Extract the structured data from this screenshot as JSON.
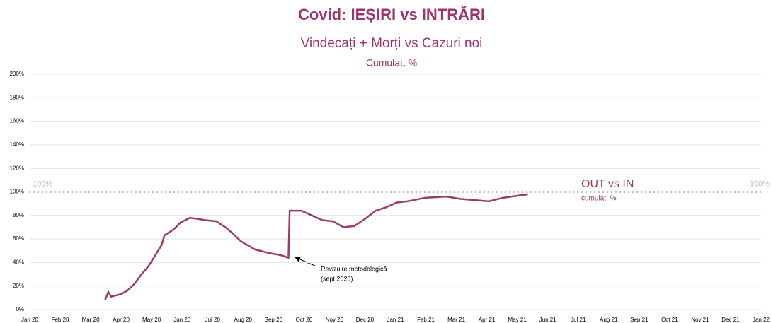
{
  "chart_data": {
    "type": "line",
    "title": "Covid: IEȘIRI vs INTRĂRI",
    "subtitle": "Vindecați + Morți vs Cazuri noi",
    "subtitle2": "Cumulat, %",
    "series": [
      {
        "name": "OUT vs IN",
        "color": "#9b3a6c",
        "x": [
          2.47,
          2.58,
          2.67,
          2.98,
          3.2,
          3.44,
          3.67,
          3.9,
          4.14,
          4.33,
          4.42,
          4.72,
          4.95,
          5.26,
          5.53,
          5.77,
          6.12,
          6.42,
          6.65,
          6.93,
          7.4,
          7.86,
          8.28,
          8.49,
          8.53,
          8.91,
          9.26,
          9.6,
          9.95,
          10.3,
          10.65,
          11.0,
          11.35,
          11.7,
          12.05,
          12.4,
          12.98,
          13.67,
          14.14,
          14.6,
          15.07,
          15.53,
          16.35
        ],
        "values": [
          8,
          15,
          11,
          13,
          16,
          22,
          30,
          37,
          47,
          55,
          63,
          68,
          74,
          78,
          77,
          76,
          75,
          70,
          65,
          58,
          51,
          48,
          46,
          44,
          84,
          84,
          80,
          76,
          75,
          70,
          71,
          77,
          84,
          87,
          91,
          92,
          95,
          96,
          94,
          93,
          92,
          95,
          98
        ]
      }
    ],
    "legend_sub": "cumulat, %",
    "reference_line": {
      "value": 100,
      "label": "100%",
      "color": "#bbbbbb"
    },
    "annotation": {
      "lines": [
        "Revizuire metodologică",
        "(sept 2020)"
      ]
    },
    "xlim": [
      0,
      24
    ],
    "xticks": [
      {
        "value": 0,
        "label": "Jan 20"
      },
      {
        "value": 1,
        "label": "Feb 20"
      },
      {
        "value": 2,
        "label": "Mar 20"
      },
      {
        "value": 3,
        "label": "Apr 20"
      },
      {
        "value": 4,
        "label": "May 20"
      },
      {
        "value": 5,
        "label": "Jun 20"
      },
      {
        "value": 6,
        "label": "Jul 20"
      },
      {
        "value": 7,
        "label": "Aug 20"
      },
      {
        "value": 8,
        "label": "Sep 20"
      },
      {
        "value": 9,
        "label": "Oct 20"
      },
      {
        "value": 10,
        "label": "Nov 20"
      },
      {
        "value": 11,
        "label": "Dec 20"
      },
      {
        "value": 12,
        "label": "Jan 21"
      },
      {
        "value": 13,
        "label": "Feb 21"
      },
      {
        "value": 14,
        "label": "Mar 21"
      },
      {
        "value": 15,
        "label": "Apr 21"
      },
      {
        "value": 16,
        "label": "May 21"
      },
      {
        "value": 17,
        "label": "Jun 21"
      },
      {
        "value": 18,
        "label": "Jul 21"
      },
      {
        "value": 19,
        "label": "Aug 21"
      },
      {
        "value": 20,
        "label": "Sep 21"
      },
      {
        "value": 21,
        "label": "Oct 21"
      },
      {
        "value": 22,
        "label": "Nov 21"
      },
      {
        "value": 23,
        "label": "Dec 21"
      },
      {
        "value": 24,
        "label": "Jan 22"
      }
    ],
    "ylim": [
      0,
      200
    ],
    "yticks": [
      {
        "value": 0,
        "label": "0%"
      },
      {
        "value": 20,
        "label": "20%"
      },
      {
        "value": 40,
        "label": "40%"
      },
      {
        "value": 60,
        "label": "60%"
      },
      {
        "value": 80,
        "label": "80%"
      },
      {
        "value": 100,
        "label": "100%"
      },
      {
        "value": 120,
        "label": "120%"
      },
      {
        "value": 140,
        "label": "140%"
      },
      {
        "value": 160,
        "label": "160%"
      },
      {
        "value": 180,
        "label": "180%"
      },
      {
        "value": 200,
        "label": "200%"
      }
    ],
    "grid": true
  }
}
